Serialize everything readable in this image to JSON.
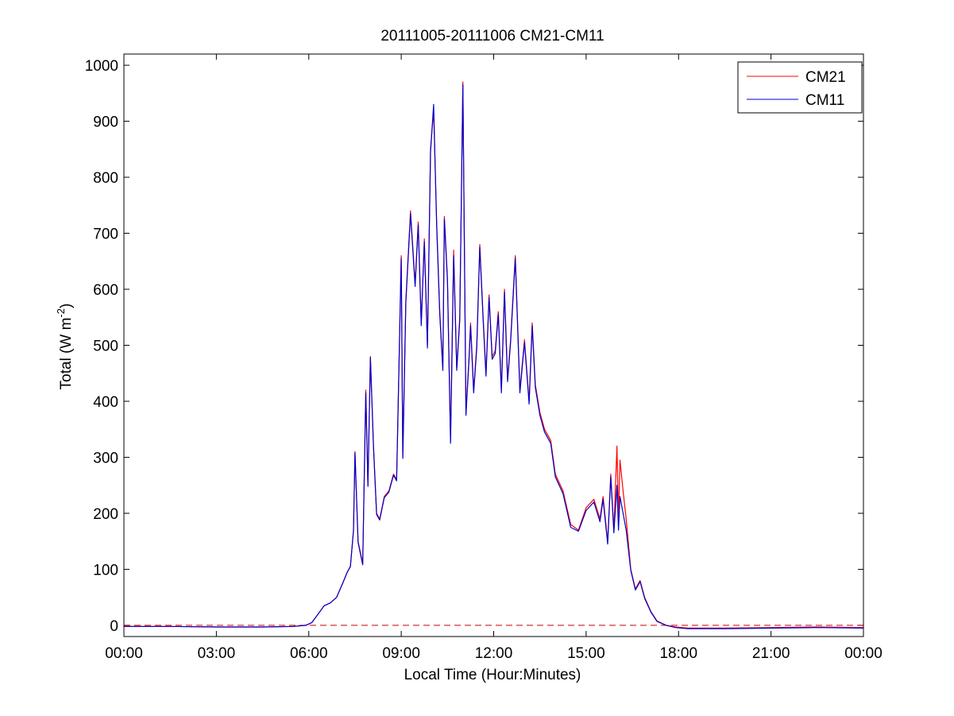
{
  "chart_data": {
    "type": "line",
    "title": "20111005-20111006 CM21-CM11",
    "xlabel": "Local Time (Hour:Minutes)",
    "ylabel": {
      "prefix": "Total (W m",
      "sup": "-2",
      "suffix": ")"
    },
    "xlim": [
      0,
      24
    ],
    "ylim": [
      -20,
      1020
    ],
    "x_ticks": [
      0,
      3,
      6,
      9,
      12,
      15,
      18,
      21,
      24
    ],
    "x_tick_labels": [
      "00:00",
      "03:00",
      "06:00",
      "09:00",
      "12:00",
      "15:00",
      "18:00",
      "21:00",
      "00:00"
    ],
    "y_ticks": [
      0,
      100,
      200,
      300,
      400,
      500,
      600,
      700,
      800,
      900,
      1000
    ],
    "y_tick_labels": [
      "0",
      "100",
      "200",
      "300",
      "400",
      "500",
      "600",
      "700",
      "800",
      "900",
      "1000"
    ],
    "grid": false,
    "legend_position": "top-right",
    "reference_line": {
      "y": 0,
      "style": "dashed",
      "color": "#cc0000"
    },
    "colors": {
      "CM21": "#ff0000",
      "CM11": "#0000cc"
    },
    "series": [
      {
        "name": "CM21",
        "x": [
          0,
          1.5,
          3,
          4.5,
          5.5,
          5.9,
          6.1,
          6.3,
          6.5,
          6.7,
          6.9,
          7.1,
          7.25,
          7.35,
          7.45,
          7.5,
          7.6,
          7.75,
          7.85,
          7.92,
          8.0,
          8.1,
          8.2,
          8.3,
          8.45,
          8.6,
          8.75,
          8.85,
          9.0,
          9.05,
          9.15,
          9.3,
          9.45,
          9.55,
          9.65,
          9.75,
          9.85,
          9.95,
          10.05,
          10.15,
          10.25,
          10.35,
          10.4,
          10.5,
          10.6,
          10.7,
          10.8,
          10.9,
          11.0,
          11.1,
          11.2,
          11.25,
          11.35,
          11.45,
          11.55,
          11.65,
          11.75,
          11.85,
          11.95,
          12.05,
          12.15,
          12.25,
          12.35,
          12.45,
          12.55,
          12.7,
          12.85,
          13.0,
          13.15,
          13.25,
          13.35,
          13.5,
          13.65,
          13.85,
          14.0,
          14.25,
          14.5,
          14.75,
          15.0,
          15.25,
          15.45,
          15.55,
          15.7,
          15.8,
          15.9,
          16.0,
          16.05,
          16.1,
          16.2,
          16.3,
          16.45,
          16.6,
          16.75,
          16.9,
          17.1,
          17.3,
          17.6,
          17.9,
          18.3,
          19.5,
          21.0,
          22.5,
          24.0
        ],
        "y": [
          -2,
          -2,
          -3,
          -3,
          -2,
          0,
          5,
          20,
          35,
          40,
          50,
          75,
          95,
          105,
          170,
          310,
          150,
          110,
          420,
          250,
          480,
          320,
          200,
          190,
          230,
          240,
          270,
          260,
          660,
          300,
          580,
          740,
          610,
          720,
          540,
          690,
          500,
          850,
          920,
          720,
          560,
          460,
          730,
          620,
          330,
          670,
          460,
          550,
          970,
          380,
          480,
          540,
          420,
          500,
          680,
          560,
          450,
          590,
          480,
          490,
          560,
          420,
          600,
          440,
          510,
          660,
          420,
          510,
          400,
          540,
          430,
          380,
          350,
          330,
          270,
          240,
          180,
          170,
          210,
          225,
          190,
          230,
          150,
          270,
          170,
          320,
          190,
          295,
          240,
          190,
          100,
          65,
          80,
          50,
          25,
          8,
          0,
          -3,
          -5,
          -5,
          -4,
          -3,
          -4
        ]
      },
      {
        "name": "CM11",
        "x": [
          0,
          1.5,
          3,
          4.5,
          5.5,
          5.9,
          6.1,
          6.3,
          6.5,
          6.7,
          6.9,
          7.1,
          7.25,
          7.35,
          7.45,
          7.5,
          7.6,
          7.75,
          7.85,
          7.92,
          8.0,
          8.1,
          8.2,
          8.3,
          8.45,
          8.6,
          8.75,
          8.85,
          9.0,
          9.05,
          9.15,
          9.3,
          9.45,
          9.55,
          9.65,
          9.75,
          9.85,
          9.95,
          10.05,
          10.15,
          10.25,
          10.35,
          10.4,
          10.5,
          10.6,
          10.7,
          10.8,
          10.9,
          11.0,
          11.1,
          11.2,
          11.25,
          11.35,
          11.45,
          11.55,
          11.65,
          11.75,
          11.85,
          11.95,
          12.05,
          12.15,
          12.25,
          12.35,
          12.45,
          12.55,
          12.7,
          12.85,
          13.0,
          13.15,
          13.25,
          13.35,
          13.5,
          13.65,
          13.85,
          14.0,
          14.25,
          14.5,
          14.75,
          15.0,
          15.25,
          15.45,
          15.55,
          15.7,
          15.8,
          15.9,
          16.0,
          16.05,
          16.1,
          16.2,
          16.3,
          16.45,
          16.6,
          16.75,
          16.9,
          17.1,
          17.3,
          17.6,
          17.9,
          18.3,
          19.5,
          21.0,
          22.5,
          24.0
        ],
        "y": [
          -2,
          -2,
          -3,
          -3,
          -2,
          0,
          5,
          20,
          35,
          40,
          50,
          75,
          95,
          105,
          168,
          308,
          148,
          108,
          415,
          248,
          478,
          318,
          198,
          188,
          228,
          238,
          268,
          258,
          655,
          298,
          575,
          735,
          605,
          715,
          535,
          685,
          495,
          845,
          930,
          715,
          555,
          455,
          725,
          615,
          325,
          660,
          455,
          545,
          965,
          375,
          475,
          535,
          415,
          495,
          675,
          555,
          445,
          585,
          475,
          485,
          555,
          415,
          595,
          435,
          505,
          655,
          415,
          505,
          395,
          535,
          425,
          375,
          345,
          325,
          265,
          235,
          175,
          168,
          205,
          220,
          185,
          225,
          145,
          265,
          165,
          250,
          170,
          230,
          200,
          170,
          98,
          63,
          78,
          48,
          24,
          7,
          0,
          -4,
          -6,
          -6,
          -5,
          -4,
          -5
        ]
      }
    ]
  }
}
